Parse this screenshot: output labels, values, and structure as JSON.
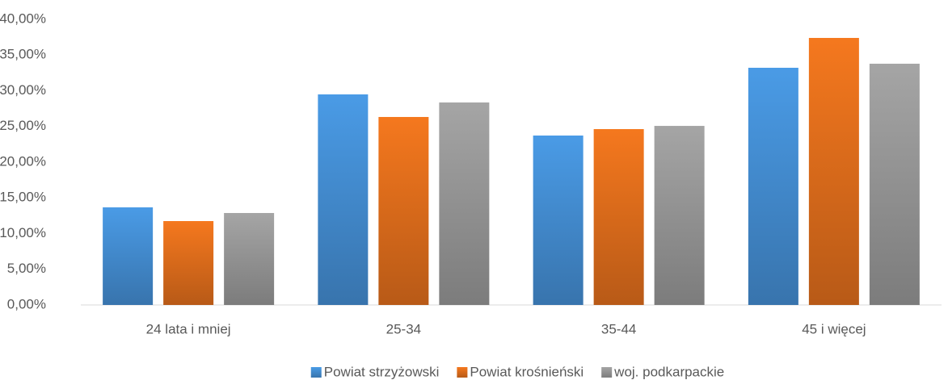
{
  "chart_data": {
    "type": "bar",
    "categories": [
      "24 lata i mniej",
      "25-34",
      "35-44",
      "45 i więcej"
    ],
    "series": [
      {
        "name": "Powiat strzyżowski",
        "color": "#4a9be6",
        "values": [
          13.67,
          29.49,
          23.73,
          33.22
        ]
      },
      {
        "name": "Powiat krośnieński",
        "color": "#f5781e",
        "values": [
          11.75,
          26.33,
          24.63,
          37.4
        ]
      },
      {
        "name": "woj. podkarpackie",
        "color": "#a5a5a5",
        "values": [
          12.88,
          28.36,
          25.08,
          33.79
        ]
      }
    ],
    "ylim": [
      0,
      40
    ],
    "yticks": [
      {
        "value": 0,
        "label": "0,00%"
      },
      {
        "value": 5,
        "label": "5,00%"
      },
      {
        "value": 10,
        "label": "10,00%"
      },
      {
        "value": 15,
        "label": "15,00%"
      },
      {
        "value": 20,
        "label": "20,00%"
      },
      {
        "value": 25,
        "label": "25,00%"
      },
      {
        "value": 30,
        "label": "30,00%"
      },
      {
        "value": 35,
        "label": "35,00%"
      },
      {
        "value": 40,
        "label": "40,00%"
      }
    ],
    "grid": false,
    "legend": "bottom"
  }
}
